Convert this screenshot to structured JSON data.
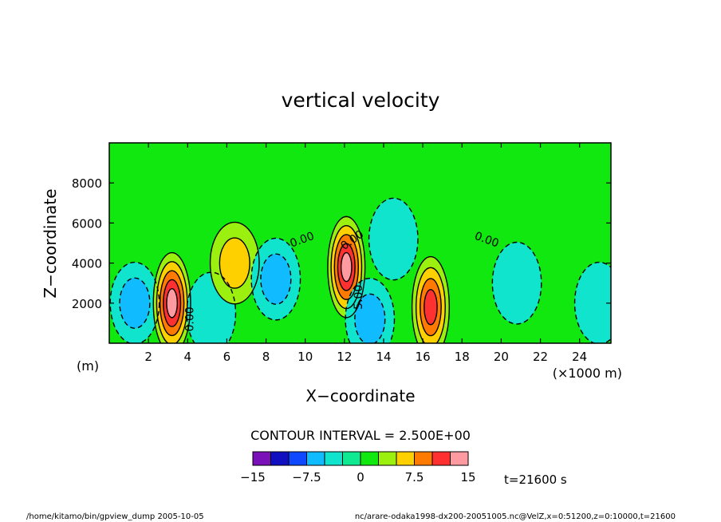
{
  "chart_data": {
    "type": "heatmap",
    "title": "vertical velocity",
    "xlabel": "X−coordinate",
    "ylabel": "Z−coordinate",
    "x_unit_label": "(m)",
    "x_scale_label": "(×1000 m)",
    "xlim": [
      0,
      25.6
    ],
    "ylim": [
      0,
      10000
    ],
    "x_ticks": [
      "2",
      "4",
      "6",
      "8",
      "10",
      "12",
      "14",
      "16",
      "18",
      "20",
      "22",
      "24"
    ],
    "y_ticks": [
      "2000",
      "4000",
      "6000",
      "8000"
    ],
    "contour_interval_label": "CONTOUR INTERVAL = 2.500E+00",
    "contour_labels": [
      "0.00",
      "0.00",
      "0.00",
      "0.00",
      "5.00"
    ],
    "colorbar": {
      "tick_labels": [
        "−15",
        "−7.5",
        "0",
        "7.5",
        "15"
      ],
      "levels": [
        -15,
        -12.5,
        -10,
        -7.5,
        -5,
        -2.5,
        0,
        2.5,
        5,
        7.5,
        10,
        12.5,
        15
      ],
      "colors": [
        "#7a10b8",
        "#1010c0",
        "#1048ff",
        "#10bcff",
        "#10e4cc",
        "#10e892",
        "#10e810",
        "#9cf010",
        "#ffd000",
        "#ff7a00",
        "#ff3030",
        "#ff9aa0"
      ]
    },
    "time_label": "t=21600 s",
    "cells": [
      {
        "xc": 1.3,
        "zc": 2000,
        "w": -5
      },
      {
        "xc": 3.2,
        "zc": 2000,
        "w": 12.5
      },
      {
        "xc": 5.2,
        "zc": 1500,
        "w": -2.5
      },
      {
        "xc": 6.4,
        "zc": 4000,
        "w": 5
      },
      {
        "xc": 8.5,
        "zc": 3200,
        "w": -5
      },
      {
        "xc": 12.1,
        "zc": 3800,
        "w": 12.5
      },
      {
        "xc": 13.3,
        "zc": 1200,
        "w": -5
      },
      {
        "xc": 14.5,
        "zc": 5200,
        "w": -2.5
      },
      {
        "xc": 16.4,
        "zc": 1800,
        "w": 10
      },
      {
        "xc": 20.8,
        "zc": 3000,
        "w": -2.5
      },
      {
        "xc": 25.0,
        "zc": 2000,
        "w": -2.5
      }
    ]
  },
  "footer": {
    "left": "/home/kitamo/bin/gpview_dump  2005-10-05",
    "right": "nc/arare-odaka1998-dx200-20051005.nc@VelZ,x=0:51200,z=0:10000,t=21600"
  }
}
